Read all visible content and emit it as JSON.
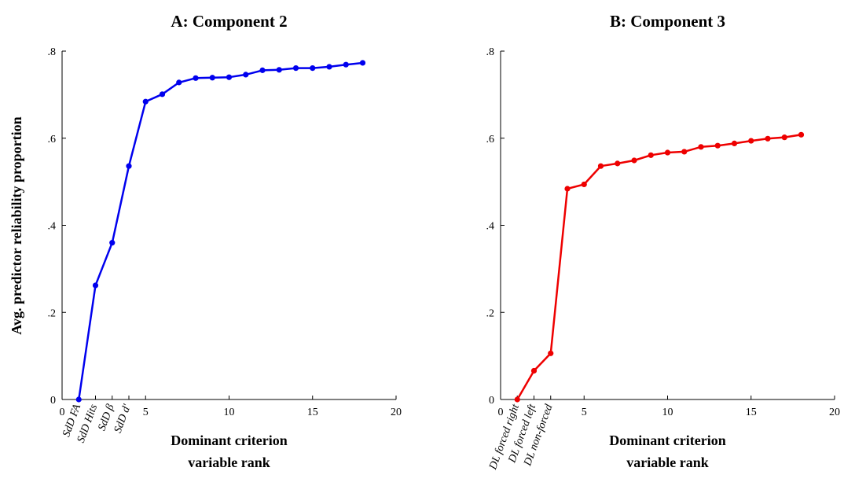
{
  "ylabel": "Avg. predictor reliability proportion",
  "chart_data": [
    {
      "type": "line",
      "title": "A: Component 2",
      "xlabel_lines": [
        "Dominant criterion",
        "variable rank"
      ],
      "xlim": [
        0,
        20
      ],
      "ylim": [
        0,
        0.8
      ],
      "xticks": [
        5,
        10,
        15,
        20
      ],
      "yticks": [
        0,
        0.2,
        0.4,
        0.6,
        0.8
      ],
      "ytick_labels": [
        "0",
        ".2",
        ".4",
        ".6",
        ".8"
      ],
      "rank_labels": [
        "SdD FA",
        "SdD Hits",
        "SdD β",
        "SdD d'"
      ],
      "color": "#0000ee",
      "series": [
        {
          "x": [
            1,
            2,
            3,
            4,
            5,
            6,
            7,
            8,
            9,
            10,
            11,
            12,
            13,
            14,
            15,
            16,
            17,
            18
          ],
          "values": [
            0.0,
            0.262,
            0.36,
            0.536,
            0.684,
            0.701,
            0.728,
            0.738,
            0.739,
            0.74,
            0.746,
            0.756,
            0.757,
            0.761,
            0.761,
            0.764,
            0.769,
            0.773
          ]
        }
      ]
    },
    {
      "type": "line",
      "title": "B: Component 3",
      "xlabel_lines": [
        "Dominant criterion",
        "variable rank"
      ],
      "xlim": [
        0,
        20
      ],
      "ylim": [
        0,
        0.8
      ],
      "xticks": [
        5,
        10,
        15,
        20
      ],
      "yticks": [
        0,
        0.2,
        0.4,
        0.6,
        0.8
      ],
      "ytick_labels": [
        "0",
        ".2",
        ".4",
        ".6",
        ".8"
      ],
      "rank_labels": [
        "DL forced right",
        "DL forced left",
        "DL non-forced"
      ],
      "color": "#ee0000",
      "series": [
        {
          "x": [
            1,
            2,
            3,
            4,
            5,
            6,
            7,
            8,
            9,
            10,
            11,
            12,
            13,
            14,
            15,
            16,
            17,
            18
          ],
          "values": [
            0.0,
            0.066,
            0.106,
            0.484,
            0.494,
            0.536,
            0.542,
            0.549,
            0.561,
            0.567,
            0.569,
            0.58,
            0.583,
            0.588,
            0.594,
            0.599,
            0.602,
            0.608
          ]
        }
      ]
    }
  ]
}
